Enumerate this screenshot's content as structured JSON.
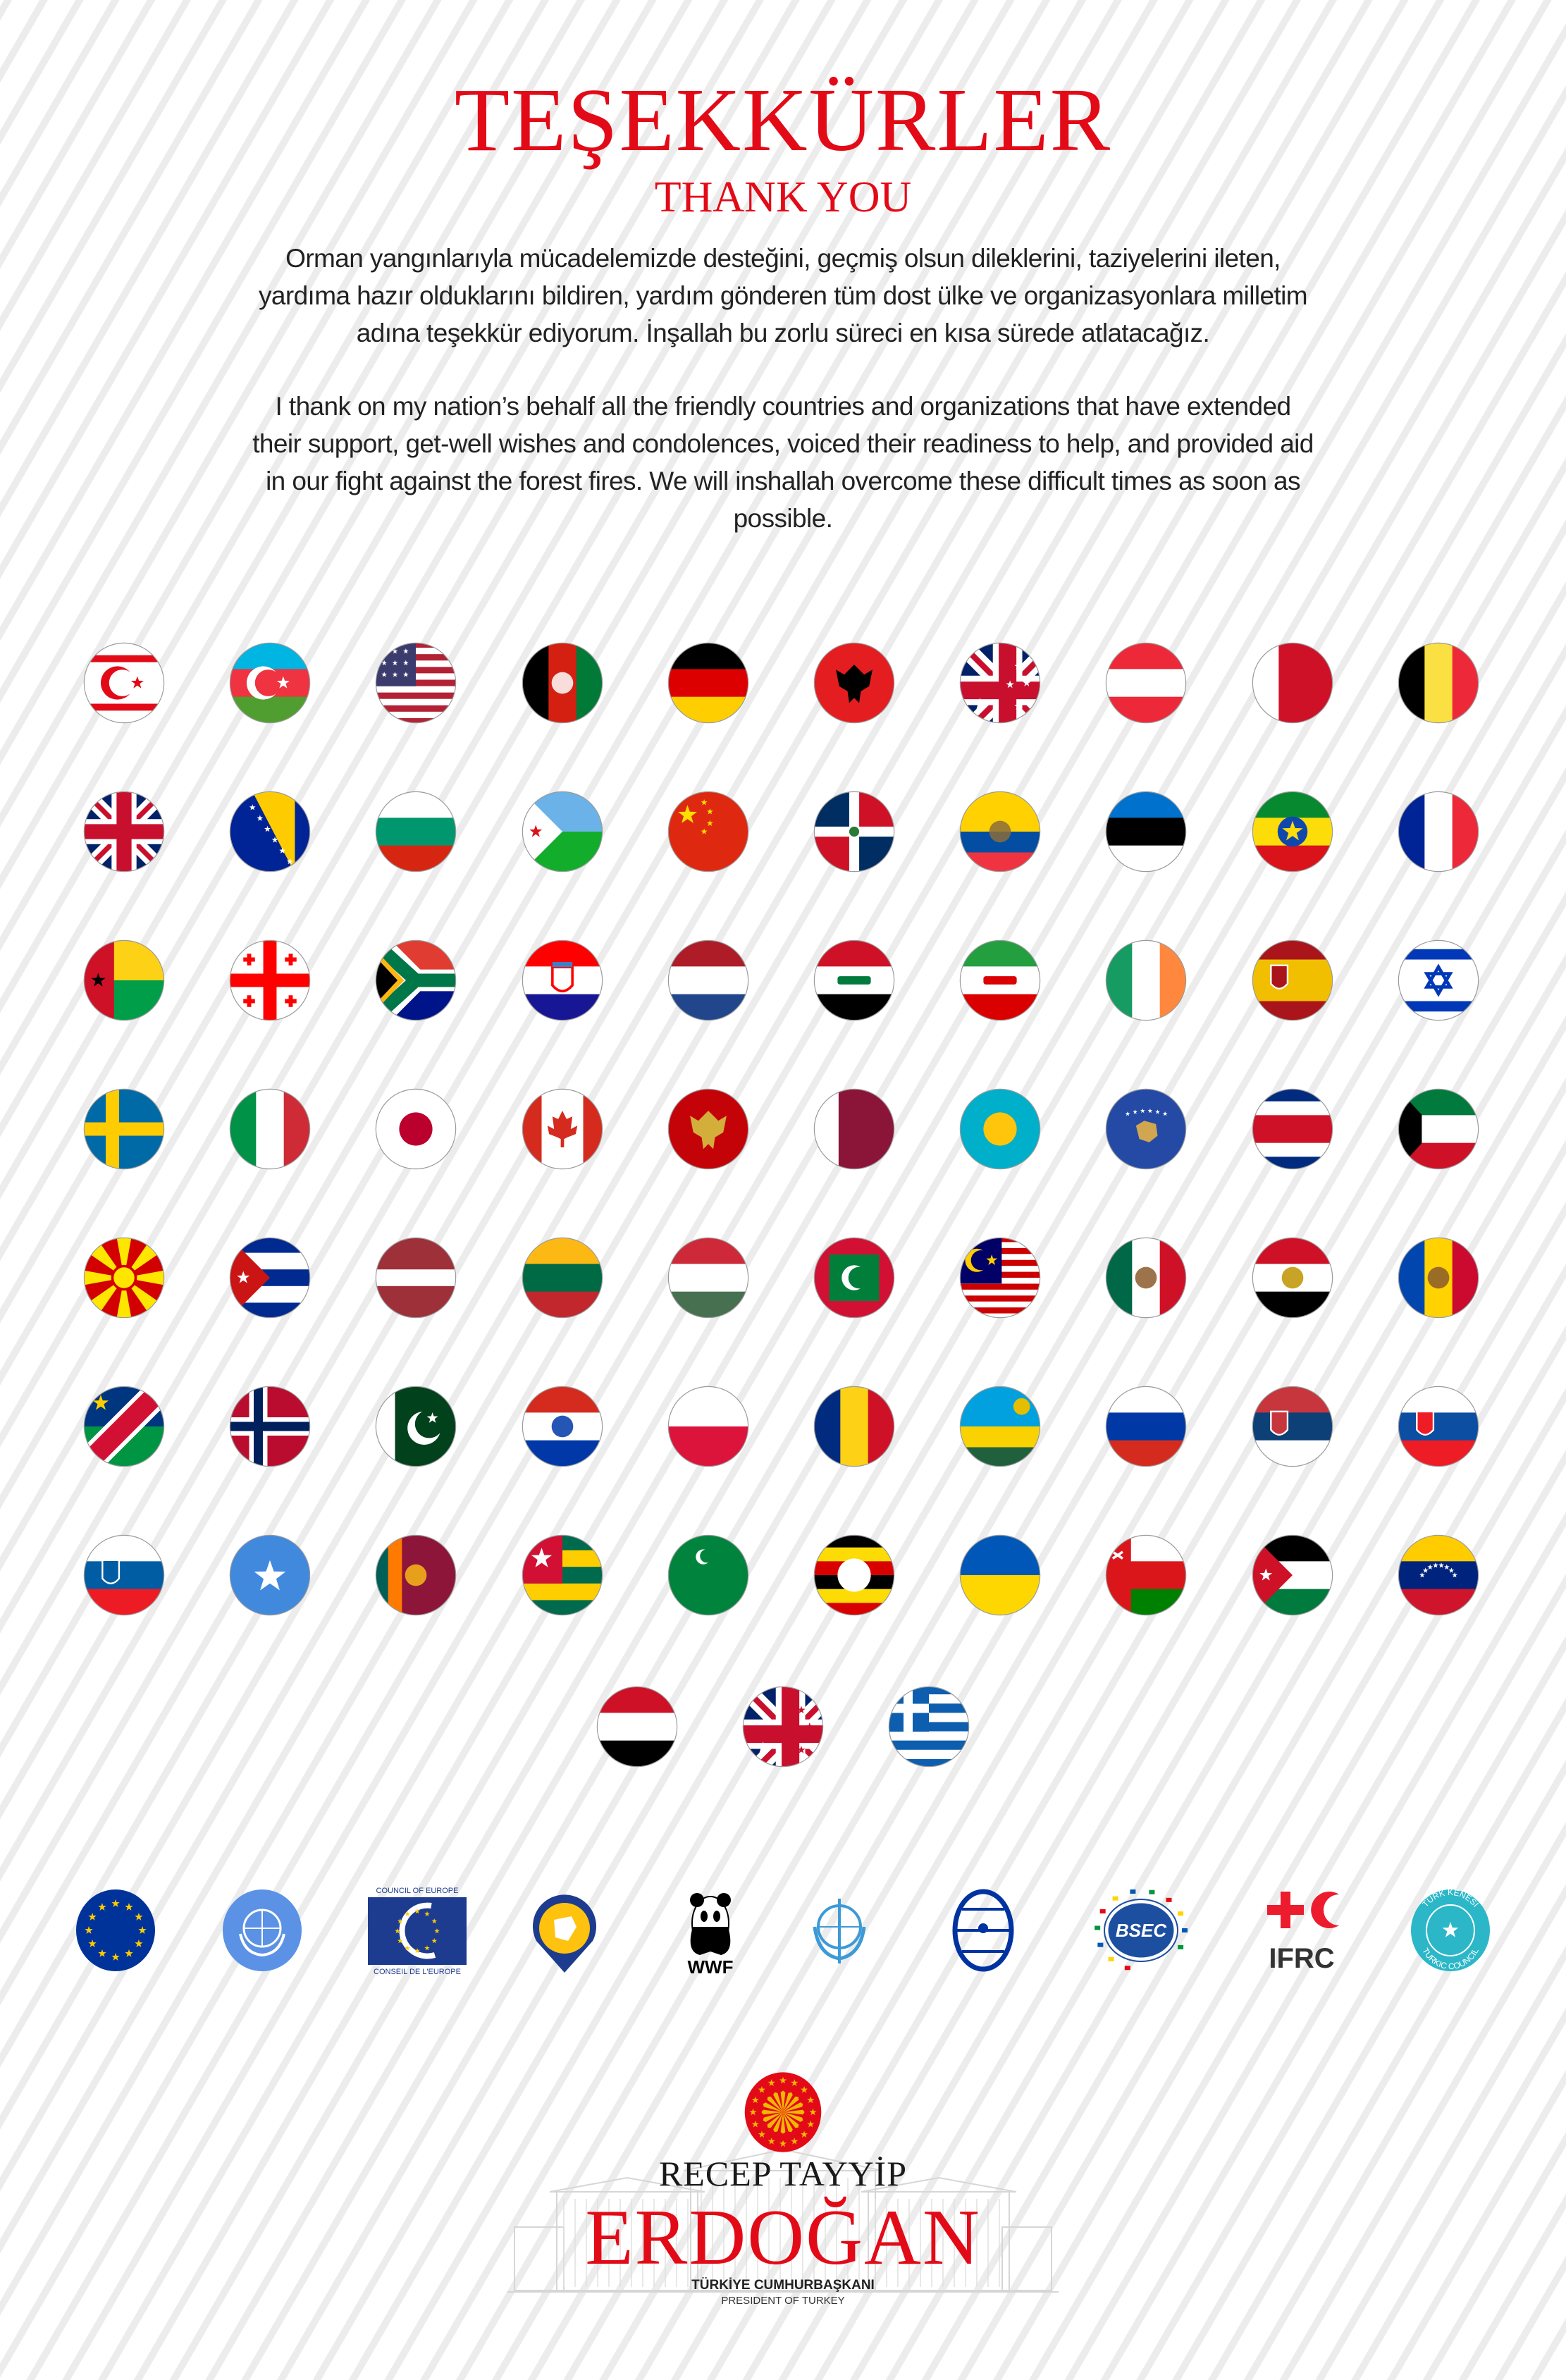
{
  "header": {
    "title": "TEŞEKKÜRLER",
    "subtitle": "THANK YOU"
  },
  "message_tr": [
    "Orman yangınlarıyla mücadelemizde desteğini, geçmiş olsun dileklerini, taziyelerini ileten,",
    "yardıma hazır olduklarını bildiren, yardım gönderen tüm dost ülke ve organizasyonlara milletim",
    "adına teşekkür ediyorum. İnşallah bu zorlu süreci en kısa sürede atlatacağız."
  ],
  "message_en": [
    "I thank on my nation’s behalf all the friendly countries and organizations that have extended",
    "their support, get-well wishes and condolences, voiced their readiness to help, and provided aid",
    "in our fight against the forest fires. We will inshallah overcome these difficult times as soon as",
    "possible."
  ],
  "flags": [
    {
      "id": "northern-cyprus",
      "dir": "h",
      "stripes": [
        "#ffffff",
        "#e30a17",
        "#ffffff",
        "#e30a17",
        "#ffffff"
      ],
      "emblem": "crescent-star",
      "emblem_colors": [
        "#e30a17"
      ]
    },
    {
      "id": "azerbaijan",
      "dir": "h",
      "stripes": [
        "#00b5e2",
        "#ef3340",
        "#509e2f"
      ],
      "emblem": "crescent-star",
      "emblem_colors": [
        "#ffffff"
      ]
    },
    {
      "id": "united-states",
      "dir": "h",
      "stripes": [
        "#b22234",
        "#ffffff",
        "#b22234",
        "#ffffff",
        "#b22234",
        "#ffffff",
        "#b22234",
        "#ffffff",
        "#b22234",
        "#ffffff",
        "#b22234",
        "#ffffff",
        "#b22234"
      ],
      "emblem": "canton-stars",
      "emblem_colors": [
        "#3c3b6e",
        "#ffffff"
      ]
    },
    {
      "id": "afghanistan",
      "dir": "v",
      "stripes": [
        "#000000",
        "#d32011",
        "#007a36"
      ],
      "emblem": "seal",
      "emblem_colors": [
        "#ffffff"
      ]
    },
    {
      "id": "germany",
      "dir": "h",
      "stripes": [
        "#000000",
        "#dd0000",
        "#ffce00"
      ]
    },
    {
      "id": "albania",
      "dir": "h",
      "stripes": [
        "#e41e20"
      ],
      "emblem": "eagle",
      "emblem_colors": [
        "#000000"
      ]
    },
    {
      "id": "australia",
      "dir": "h",
      "stripes": [
        "#00008b"
      ],
      "emblem": "canton-union",
      "emblem_colors": [
        "#ffffff"
      ]
    },
    {
      "id": "austria",
      "dir": "h",
      "stripes": [
        "#ed2939",
        "#ffffff",
        "#ed2939"
      ]
    },
    {
      "id": "bahrain",
      "dir": "v",
      "stripes": [
        "#ffffff",
        "#ce1126"
      ]
    },
    {
      "id": "belgium",
      "dir": "v",
      "stripes": [
        "#000000",
        "#fae042",
        "#ed2939"
      ]
    },
    {
      "id": "united-kingdom",
      "dir": "h",
      "stripes": [
        "#012169"
      ],
      "emblem": "union"
    },
    {
      "id": "bosnia-herzegovina",
      "dir": "h",
      "stripes": [
        "#002395"
      ],
      "emblem": "bosnia",
      "emblem_colors": [
        "#fecb00",
        "#ffffff"
      ]
    },
    {
      "id": "bulgaria",
      "dir": "h",
      "stripes": [
        "#ffffff",
        "#00966e",
        "#d62612"
      ]
    },
    {
      "id": "djibouti",
      "dir": "h",
      "stripes": [
        "#6ab2e7",
        "#12ad2b"
      ],
      "emblem": "triangle-star",
      "emblem_colors": [
        "#ffffff",
        "#d7141a"
      ]
    },
    {
      "id": "china",
      "dir": "h",
      "stripes": [
        "#de2910"
      ],
      "emblem": "china",
      "emblem_colors": [
        "#ffde00"
      ]
    },
    {
      "id": "dominican-republic",
      "dir": "h",
      "stripes": [
        "#ffffff"
      ],
      "emblem": "quarters-cross",
      "emblem_colors": [
        "#002d62",
        "#ce1126",
        "#ffffff"
      ]
    },
    {
      "id": "ecuador",
      "dir": "h",
      "stripes": [
        "#ffd100",
        "#034ea2",
        "#ef3340"
      ],
      "emblem": "seal",
      "emblem_colors": [
        "#8a6d3b"
      ]
    },
    {
      "id": "estonia",
      "dir": "h",
      "stripes": [
        "#0072ce",
        "#000000",
        "#ffffff"
      ]
    },
    {
      "id": "ethiopia",
      "dir": "h",
      "stripes": [
        "#078930",
        "#fcdd09",
        "#da121a"
      ],
      "emblem": "disc-star",
      "emblem_colors": [
        "#0f47af",
        "#fcdd09"
      ]
    },
    {
      "id": "france",
      "dir": "v",
      "stripes": [
        "#002395",
        "#ffffff",
        "#ed2939"
      ]
    },
    {
      "id": "guinea-bissau",
      "dir": "h",
      "stripes": [
        "#fcd116",
        "#009e49"
      ],
      "emblem": "hoist-band-star",
      "emblem_colors": [
        "#ce1126",
        "#000000"
      ]
    },
    {
      "id": "georgia",
      "dir": "h",
      "stripes": [
        "#ffffff"
      ],
      "emblem": "greek-cross",
      "emblem_colors": [
        "#ff0000"
      ]
    },
    {
      "id": "south-africa",
      "dir": "h",
      "stripes": [
        "#e03c31",
        "#001489"
      ],
      "emblem": "south-africa"
    },
    {
      "id": "croatia",
      "dir": "h",
      "stripes": [
        "#ff0000",
        "#ffffff",
        "#171796"
      ],
      "emblem": "shield",
      "emblem_colors": [
        "#ff0000"
      ]
    },
    {
      "id": "netherlands",
      "dir": "h",
      "stripes": [
        "#ae1c28",
        "#ffffff",
        "#21468b"
      ]
    },
    {
      "id": "iraq",
      "dir": "h",
      "stripes": [
        "#ce1126",
        "#ffffff",
        "#000000"
      ],
      "emblem": "script",
      "emblem_colors": [
        "#007a3d"
      ]
    },
    {
      "id": "iran",
      "dir": "h",
      "stripes": [
        "#239f40",
        "#ffffff",
        "#da0000"
      ],
      "emblem": "script",
      "emblem_colors": [
        "#da0000"
      ]
    },
    {
      "id": "ireland",
      "dir": "v",
      "stripes": [
        "#169b62",
        "#ffffff",
        "#ff883e"
      ]
    },
    {
      "id": "spain",
      "dir": "h",
      "stripes": [
        "#aa151b",
        "#f1bf00",
        "#aa151b"
      ],
      "emblem": "shield-left",
      "emblem_colors": [
        "#aa151b"
      ]
    },
    {
      "id": "israel",
      "dir": "h",
      "stripes": [
        "#ffffff",
        "#0038b8",
        "#ffffff",
        "#0038b8",
        "#ffffff"
      ],
      "emblem": "hexagram",
      "emblem_colors": [
        "#0038b8"
      ]
    },
    {
      "id": "sweden",
      "dir": "h",
      "stripes": [
        "#006aa7"
      ],
      "emblem": "nordic",
      "emblem_colors": [
        "#fecc00"
      ]
    },
    {
      "id": "italy",
      "dir": "v",
      "stripes": [
        "#009246",
        "#ffffff",
        "#ce2b37"
      ]
    },
    {
      "id": "japan",
      "dir": "h",
      "stripes": [
        "#ffffff"
      ],
      "emblem": "disc",
      "emblem_colors": [
        "#bc002d"
      ]
    },
    {
      "id": "canada",
      "dir": "v",
      "stripes": [
        "#d52b1e",
        "#ffffff",
        "#d52b1e"
      ],
      "emblem": "leaf",
      "emblem_colors": [
        "#d52b1e"
      ]
    },
    {
      "id": "montenegro",
      "dir": "h",
      "stripes": [
        "#c40308"
      ],
      "emblem": "eagle",
      "emblem_colors": [
        "#d3ae3b"
      ]
    },
    {
      "id": "qatar",
      "dir": "v",
      "stripes": [
        "#ffffff",
        "#8a1538"
      ]
    },
    {
      "id": "kazakhstan",
      "dir": "h",
      "stripes": [
        "#00afca"
      ],
      "emblem": "disc",
      "emblem_colors": [
        "#fec50c"
      ]
    },
    {
      "id": "kosovo",
      "dir": "h",
      "stripes": [
        "#244aa5"
      ],
      "emblem": "kosovo",
      "emblem_colors": [
        "#d0a650",
        "#ffffff"
      ]
    },
    {
      "id": "costa-rica",
      "dir": "h",
      "stripes": [
        "#002b7f",
        "#ffffff",
        "#ce1126",
        "#ffffff",
        "#002b7f"
      ]
    },
    {
      "id": "kuwait",
      "dir": "h",
      "stripes": [
        "#007a3d",
        "#ffffff",
        "#ce1126"
      ],
      "emblem": "hoist-trapezoid",
      "emblem_colors": [
        "#000000"
      ]
    },
    {
      "id": "north-macedonia",
      "dir": "h",
      "stripes": [
        "#d20000"
      ],
      "emblem": "sun-rays",
      "emblem_colors": [
        "#ffe600"
      ]
    },
    {
      "id": "cuba",
      "dir": "h",
      "stripes": [
        "#002a8f",
        "#ffffff",
        "#002a8f",
        "#ffffff",
        "#002a8f"
      ],
      "emblem": "triangle-star",
      "emblem_colors": [
        "#cb1515",
        "#ffffff"
      ]
    },
    {
      "id": "latvia",
      "dir": "h",
      "stripes": [
        "#9e3039",
        "#ffffff",
        "#9e3039"
      ]
    },
    {
      "id": "lithuania",
      "dir": "h",
      "stripes": [
        "#fdb913",
        "#006a44",
        "#c1272d"
      ]
    },
    {
      "id": "hungary",
      "dir": "h",
      "stripes": [
        "#ce2939",
        "#ffffff",
        "#477050"
      ]
    },
    {
      "id": "maldives",
      "dir": "h",
      "stripes": [
        "#d21034"
      ],
      "emblem": "maldives",
      "emblem_colors": [
        "#007e3a",
        "#ffffff"
      ]
    },
    {
      "id": "malaysia",
      "dir": "h",
      "stripes": [
        "#cc0001",
        "#ffffff",
        "#cc0001",
        "#ffffff",
        "#cc0001",
        "#ffffff",
        "#cc0001",
        "#ffffff",
        "#cc0001",
        "#ffffff",
        "#cc0001",
        "#ffffff",
        "#cc0001",
        "#ffffff"
      ],
      "emblem": "canton-crescent",
      "emblem_colors": [
        "#010066",
        "#ffcc00"
      ]
    },
    {
      "id": "mexico",
      "dir": "v",
      "stripes": [
        "#006847",
        "#ffffff",
        "#ce1126"
      ],
      "emblem": "seal",
      "emblem_colors": [
        "#8c5a2b"
      ]
    },
    {
      "id": "egypt",
      "dir": "h",
      "stripes": [
        "#ce1126",
        "#ffffff",
        "#000000"
      ],
      "emblem": "seal",
      "emblem_colors": [
        "#c09300"
      ]
    },
    {
      "id": "moldova",
      "dir": "v",
      "stripes": [
        "#0046ae",
        "#ffd200",
        "#cc092f"
      ],
      "emblem": "seal",
      "emblem_colors": [
        "#8a5a2b"
      ]
    },
    {
      "id": "namibia",
      "dir": "h",
      "stripes": [
        "#003580",
        "#009543"
      ],
      "emblem": "namibia",
      "emblem_colors": [
        "#d21034",
        "#ffffff",
        "#ffce00"
      ]
    },
    {
      "id": "norway",
      "dir": "h",
      "stripes": [
        "#ba0c2f"
      ],
      "emblem": "nordic-double",
      "emblem_colors": [
        "#ffffff",
        "#00205b"
      ]
    },
    {
      "id": "pakistan",
      "dir": "v",
      "stripes": [
        "#ffffff",
        "#01411c"
      ],
      "emblem": "crescent-star-right",
      "emblem_colors": [
        "#ffffff"
      ]
    },
    {
      "id": "paraguay",
      "dir": "h",
      "stripes": [
        "#d52b1e",
        "#ffffff",
        "#0038a8"
      ],
      "emblem": "seal",
      "emblem_colors": [
        "#0038a8"
      ]
    },
    {
      "id": "poland",
      "dir": "h",
      "stripes": [
        "#ffffff",
        "#dc143c"
      ]
    },
    {
      "id": "romania",
      "dir": "v",
      "stripes": [
        "#002b7f",
        "#fcd116",
        "#ce1126"
      ]
    },
    {
      "id": "rwanda",
      "dir": "h",
      "stripes": [
        "#00a1de",
        "#fad201",
        "#20603d"
      ],
      "emblem": "sun-corner",
      "emblem_colors": [
        "#e5be01"
      ]
    },
    {
      "id": "russia",
      "dir": "h",
      "stripes": [
        "#ffffff",
        "#0039a6",
        "#d52b1e"
      ]
    },
    {
      "id": "serbia",
      "dir": "h",
      "stripes": [
        "#c6363c",
        "#0c4076",
        "#ffffff"
      ],
      "emblem": "shield-left",
      "emblem_colors": [
        "#c6363c"
      ]
    },
    {
      "id": "slovakia",
      "dir": "h",
      "stripes": [
        "#ffffff",
        "#0b4ea2",
        "#ee1c25"
      ],
      "emblem": "shield-left",
      "emblem_colors": [
        "#ee1c25"
      ]
    },
    {
      "id": "slovenia",
      "dir": "h",
      "stripes": [
        "#ffffff",
        "#005da4",
        "#ed1c24"
      ],
      "emblem": "shield-left",
      "emblem_colors": [
        "#005da4"
      ]
    },
    {
      "id": "somalia",
      "dir": "h",
      "stripes": [
        "#4189dd"
      ],
      "emblem": "star",
      "emblem_colors": [
        "#ffffff"
      ]
    },
    {
      "id": "sri-lanka",
      "dir": "v",
      "stripes": [
        "#005f56",
        "#ff7a00",
        "#8d153a"
      ],
      "emblem": "seal",
      "emblem_colors": [
        "#f7b718"
      ]
    },
    {
      "id": "togo",
      "dir": "h",
      "stripes": [
        "#006a4e",
        "#ffce00",
        "#006a4e",
        "#ffce00",
        "#006a4e"
      ],
      "emblem": "canton-star",
      "emblem_colors": [
        "#d21034",
        "#ffffff"
      ]
    },
    {
      "id": "turkmenistan",
      "dir": "h",
      "stripes": [
        "#00843d"
      ],
      "emblem": "crescent-small",
      "emblem_colors": [
        "#ffffff"
      ]
    },
    {
      "id": "uganda",
      "dir": "h",
      "stripes": [
        "#000000",
        "#fcdc04",
        "#d90000",
        "#000000",
        "#fcdc04",
        "#d90000"
      ],
      "emblem": "disc",
      "emblem_colors": [
        "#ffffff"
      ]
    },
    {
      "id": "ukraine",
      "dir": "h",
      "stripes": [
        "#0057b7",
        "#ffd700"
      ]
    },
    {
      "id": "oman",
      "dir": "h",
      "stripes": [
        "#ffffff",
        "#db161b",
        "#008000"
      ],
      "emblem": "hoist-band",
      "emblem_colors": [
        "#db161b"
      ]
    },
    {
      "id": "jordan",
      "dir": "h",
      "stripes": [
        "#000000",
        "#ffffff",
        "#007a3d"
      ],
      "emblem": "triangle-star",
      "emblem_colors": [
        "#ce1126",
        "#ffffff"
      ]
    },
    {
      "id": "venezuela",
      "dir": "h",
      "stripes": [
        "#ffcc00",
        "#00247d",
        "#cf142b"
      ],
      "emblem": "star-arc",
      "emblem_colors": [
        "#ffffff"
      ]
    },
    {
      "id": "yemen",
      "dir": "h",
      "stripes": [
        "#ce1126",
        "#ffffff",
        "#000000"
      ]
    },
    {
      "id": "new-zealand",
      "dir": "h",
      "stripes": [
        "#012169"
      ],
      "emblem": "canton-union",
      "emblem_colors": [
        "#c8102e"
      ]
    },
    {
      "id": "greece",
      "dir": "h",
      "stripes": [
        "#0d5eaf",
        "#ffffff",
        "#0d5eaf",
        "#ffffff",
        "#0d5eaf",
        "#ffffff",
        "#0d5eaf",
        "#ffffff",
        "#0d5eaf"
      ],
      "emblem": "canton-cross",
      "emblem_colors": [
        "#0d5eaf",
        "#ffffff"
      ]
    }
  ],
  "organizations": [
    {
      "id": "european-union",
      "colors": [
        "#003399",
        "#ffcc00"
      ]
    },
    {
      "id": "united-nations",
      "colors": [
        "#5b92e5",
        "#ffffff"
      ]
    },
    {
      "id": "council-of-europe",
      "colors": [
        "#1d3c8f",
        "#ffcc00"
      ],
      "text_top": "COUNCIL OF EUROPE",
      "text_bottom": "CONSEIL DE L'EUROPE"
    },
    {
      "id": "syria-civil-defence",
      "colors": [
        "#1d3c8f",
        "#ffc20e"
      ]
    },
    {
      "id": "wwf",
      "colors": [
        "#000000"
      ],
      "text": "WWF"
    },
    {
      "id": "world-health-organization",
      "colors": [
        "#3c9ad7"
      ]
    },
    {
      "id": "iom",
      "colors": [
        "#0033a0"
      ]
    },
    {
      "id": "bsec",
      "colors": [
        "#1d4fa0"
      ],
      "text": "BSEC"
    },
    {
      "id": "ifrc",
      "colors": [
        "#ed1b2e",
        "#333333"
      ],
      "text": "IFRC"
    },
    {
      "id": "turkic-council",
      "colors": [
        "#2bb7c8"
      ],
      "text_top": "TÜRK KENESİ",
      "text_bottom": "TURKIC COUNCIL"
    }
  ],
  "signature": {
    "first_name": "RECEP TAYYİP",
    "last_name": "ERDOĞAN",
    "role_tr": "TÜRKİYE CUMHURBAŞKANI",
    "role_en": "PRESIDENT OF TURKEY",
    "seal_colors": [
      "#e30a17",
      "#f2b705"
    ]
  },
  "colors": {
    "accent": "#e30a17",
    "text": "#222222",
    "stripe": "#ececec"
  }
}
